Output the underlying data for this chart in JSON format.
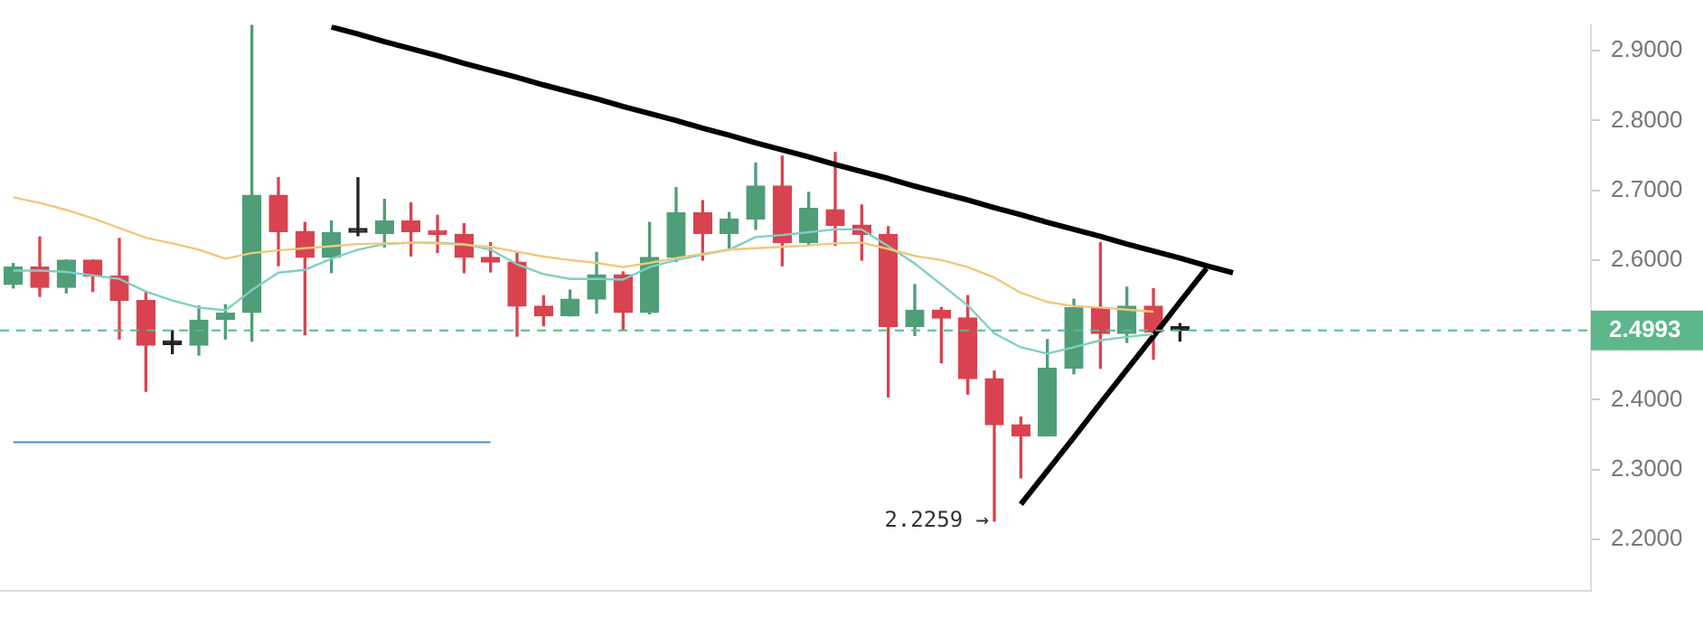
{
  "chart_data": {
    "type": "candlestick",
    "categories": [
      null,
      null,
      null,
      null,
      null,
      null,
      null,
      null,
      null,
      null,
      null,
      null,
      null,
      null,
      null,
      null,
      null,
      null,
      null,
      null,
      null,
      null,
      null,
      null,
      null,
      null,
      null,
      null,
      null,
      null,
      null,
      null,
      null,
      null,
      null,
      null,
      null,
      null,
      null,
      null,
      null,
      null,
      null,
      null,
      null,
      null,
      null,
      null,
      null,
      null,
      null,
      null,
      null,
      null,
      null,
      null,
      null,
      null,
      null,
      null
    ],
    "ohlc": [
      [
        2.565,
        2.595,
        2.56,
        2.59
      ],
      [
        2.59,
        2.633,
        2.548,
        2.561
      ],
      [
        2.561,
        2.6,
        2.553,
        2.6
      ],
      [
        2.6,
        2.6,
        2.555,
        2.577
      ],
      [
        2.577,
        2.631,
        2.487,
        2.542
      ],
      [
        2.542,
        2.555,
        2.412,
        2.478
      ],
      [
        2.479,
        2.499,
        2.466,
        2.479
      ],
      [
        2.478,
        2.534,
        2.464,
        2.514
      ],
      [
        2.515,
        2.536,
        2.487,
        2.524
      ],
      [
        2.525,
        2.937,
        2.484,
        2.693
      ],
      [
        2.693,
        2.718,
        2.592,
        2.641
      ],
      [
        2.641,
        2.654,
        2.493,
        2.604
      ],
      [
        2.604,
        2.656,
        2.582,
        2.639
      ],
      [
        2.64,
        2.718,
        2.635,
        2.64
      ],
      [
        2.638,
        2.687,
        2.619,
        2.656
      ],
      [
        2.656,
        2.682,
        2.606,
        2.641
      ],
      [
        2.642,
        2.664,
        2.611,
        2.637
      ],
      [
        2.637,
        2.652,
        2.582,
        2.604
      ],
      [
        2.604,
        2.625,
        2.583,
        2.597
      ],
      [
        2.597,
        2.611,
        2.491,
        2.534
      ],
      [
        2.534,
        2.549,
        2.506,
        2.52
      ],
      [
        2.52,
        2.557,
        2.52,
        2.544
      ],
      [
        2.544,
        2.611,
        2.524,
        2.579
      ],
      [
        2.579,
        2.583,
        2.501,
        2.525
      ],
      [
        2.525,
        2.654,
        2.523,
        2.604
      ],
      [
        2.604,
        2.704,
        2.598,
        2.668
      ],
      [
        2.668,
        2.685,
        2.6,
        2.638
      ],
      [
        2.638,
        2.668,
        2.615,
        2.659
      ],
      [
        2.659,
        2.739,
        2.644,
        2.706
      ],
      [
        2.706,
        2.749,
        2.592,
        2.625
      ],
      [
        2.625,
        2.697,
        2.623,
        2.674
      ],
      [
        2.672,
        2.754,
        2.621,
        2.65
      ],
      [
        2.65,
        2.679,
        2.6,
        2.637
      ],
      [
        2.637,
        2.648,
        2.404,
        2.505
      ],
      [
        2.505,
        2.565,
        2.492,
        2.528
      ],
      [
        2.528,
        2.532,
        2.453,
        2.517
      ],
      [
        2.517,
        2.549,
        2.408,
        2.43
      ],
      [
        2.43,
        2.441,
        2.2259,
        2.364
      ],
      [
        2.364,
        2.375,
        2.288,
        2.348
      ],
      [
        2.348,
        2.486,
        2.348,
        2.445
      ],
      [
        2.445,
        2.544,
        2.437,
        2.532
      ],
      [
        2.532,
        2.625,
        2.445,
        2.495
      ],
      [
        2.495,
        2.561,
        2.482,
        2.534
      ],
      [
        2.534,
        2.559,
        2.458,
        2.497
      ],
      [
        2.4993,
        2.509,
        2.484,
        2.4993
      ],
      null,
      null,
      null,
      null,
      null,
      null,
      null,
      null,
      null,
      null,
      null,
      null,
      null,
      null,
      null
    ],
    "colors": [
      "#4f9e78",
      "#d9434f",
      "#4f9e78",
      "#d9434f",
      "#d9434f",
      "#d9434f",
      "#222222",
      "#4f9e78",
      "#4f9e78",
      "#4f9e78",
      "#d9434f",
      "#d9434f",
      "#4f9e78",
      "#222222",
      "#4f9e78",
      "#d9434f",
      "#d9434f",
      "#d9434f",
      "#d9434f",
      "#d9434f",
      "#d9434f",
      "#4f9e78",
      "#4f9e78",
      "#d9434f",
      "#4f9e78",
      "#4f9e78",
      "#d9434f",
      "#4f9e78",
      "#4f9e78",
      "#d9434f",
      "#4f9e78",
      "#d9434f",
      "#d9434f",
      "#d9434f",
      "#4f9e78",
      "#d9434f",
      "#d9434f",
      "#d9434f",
      "#d9434f",
      "#4f9e78",
      "#4f9e78",
      "#d9434f",
      "#4f9e78",
      "#d9434f",
      "#222222",
      null,
      null,
      null,
      null,
      null,
      null,
      null,
      null,
      null,
      null,
      null,
      null,
      null,
      null,
      null
    ],
    "series": [
      {
        "type": "line",
        "color": "#f0c87a",
        "values": [
          2.69,
          2.682,
          2.672,
          2.66,
          2.646,
          2.632,
          2.624,
          2.615,
          2.602,
          2.61,
          2.614,
          2.617,
          2.62,
          2.623,
          2.624,
          2.625,
          2.624,
          2.622,
          2.619,
          2.612,
          2.605,
          2.6,
          2.596,
          2.59,
          2.596,
          2.603,
          2.609,
          2.615,
          2.617,
          2.619,
          2.621,
          2.624,
          2.625,
          2.616,
          2.606,
          2.6,
          2.59,
          2.575,
          2.553,
          2.54,
          2.534,
          2.532,
          2.529,
          2.526,
          null,
          null,
          null,
          null,
          null,
          null,
          null,
          null,
          null,
          null,
          null,
          null,
          null,
          null,
          null,
          null
        ]
      },
      {
        "type": "line",
        "color": "#7fcfc4",
        "values": [
          2.585,
          2.585,
          2.583,
          2.578,
          2.573,
          2.555,
          2.542,
          2.532,
          2.528,
          2.557,
          2.582,
          2.586,
          2.602,
          2.615,
          2.623,
          2.625,
          2.625,
          2.623,
          2.615,
          2.594,
          2.58,
          2.573,
          2.573,
          2.572,
          2.59,
          2.6,
          2.608,
          2.615,
          2.633,
          2.636,
          2.64,
          2.644,
          2.644,
          2.62,
          2.595,
          2.565,
          2.535,
          2.495,
          2.475,
          2.466,
          2.475,
          2.485,
          2.49,
          2.494,
          null,
          null,
          null,
          null,
          null,
          null,
          null,
          null,
          null,
          null,
          null,
          null,
          null,
          null,
          null,
          null
        ]
      },
      {
        "type": "line",
        "color": "#000000",
        "values": [
          null,
          null,
          null,
          null,
          null,
          null,
          null,
          null,
          null,
          null,
          null,
          null,
          2.934,
          2.924,
          2.913,
          2.903,
          2.893,
          2.882,
          2.872,
          2.862,
          2.851,
          2.841,
          2.831,
          2.82,
          2.81,
          2.8,
          2.789,
          2.779,
          2.768,
          2.758,
          2.748,
          2.737,
          2.727,
          2.717,
          2.706,
          2.696,
          2.686,
          2.675,
          2.665,
          2.654,
          2.644,
          2.634,
          2.623,
          2.613,
          2.603,
          2.592,
          2.582,
          null,
          null,
          null,
          null,
          null,
          null,
          null,
          null,
          null,
          null,
          null,
          null,
          null
        ]
      },
      {
        "type": "line",
        "color": "#000000",
        "values": [
          null,
          null,
          null,
          null,
          null,
          null,
          null,
          null,
          null,
          null,
          null,
          null,
          null,
          null,
          null,
          null,
          null,
          null,
          null,
          null,
          null,
          null,
          null,
          null,
          null,
          null,
          null,
          null,
          null,
          null,
          null,
          null,
          null,
          null,
          null,
          null,
          null,
          null,
          2.25,
          2.298,
          2.346,
          2.395,
          2.443,
          2.491,
          2.54,
          2.588,
          null,
          null,
          null,
          null,
          null,
          null,
          null,
          null,
          null,
          null,
          null,
          null,
          null,
          null
        ]
      },
      {
        "type": "line",
        "color": "#4a90c8",
        "values": [
          2.339,
          2.339,
          2.339,
          2.339,
          2.339,
          2.339,
          2.339,
          2.339,
          2.339,
          2.339,
          2.339,
          2.339,
          2.339,
          2.339,
          2.339,
          2.339,
          2.339,
          2.339,
          2.339,
          null,
          null,
          null,
          null,
          null,
          null,
          null,
          null,
          null,
          null,
          null,
          null,
          null,
          null,
          null,
          null,
          null,
          null,
          null,
          null,
          null,
          null,
          null,
          null,
          null,
          null,
          null,
          null,
          null,
          null,
          null,
          null,
          null,
          null,
          null,
          null,
          null,
          null,
          null,
          null,
          null
        ]
      }
    ],
    "ylim": [
      2.126,
      2.937
    ],
    "yticks": [
      {
        "value": 2.2,
        "label": "2.2000"
      },
      {
        "value": 2.3,
        "label": "2.3000"
      },
      {
        "value": 2.4,
        "label": "2.4000"
      },
      {
        "value": 2.6,
        "label": "2.6000"
      },
      {
        "value": 2.7,
        "label": "2.7000"
      },
      {
        "value": 2.8,
        "label": "2.8000"
      },
      {
        "value": 2.9,
        "label": "2.9000"
      }
    ],
    "ref_lines": [
      {
        "axis": "y",
        "value": 2.4993,
        "label": "2.4993",
        "color": "#5cb88a",
        "line_style": "dashed"
      }
    ],
    "annotations": [
      "2.2259 →"
    ],
    "legend": false,
    "grid": false,
    "marker": "none"
  }
}
